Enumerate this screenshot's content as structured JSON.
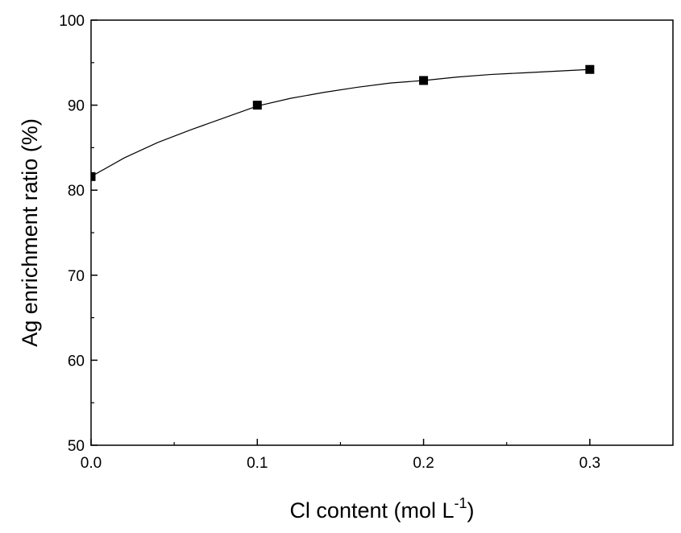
{
  "chart_data": {
    "type": "scatter",
    "title": "",
    "xlabel": "Cl content (mol L",
    "xlabel_sup": "-1",
    "xlabel_end": ")",
    "ylabel": "Ag enrichment ratio (%)",
    "xlim": [
      0.0,
      0.35
    ],
    "ylim": [
      50,
      100
    ],
    "x_ticks": [
      "0.0",
      "0.1",
      "0.2",
      "0.3"
    ],
    "y_ticks": [
      "50",
      "60",
      "70",
      "80",
      "90",
      "100"
    ],
    "grid": false,
    "legend": "none",
    "series": [
      {
        "marker": "square",
        "color": "#000000",
        "x": [
          0.0,
          0.1,
          0.2,
          0.3
        ],
        "y": [
          81.6,
          90.0,
          92.9,
          94.2
        ]
      }
    ],
    "fit_curve": {
      "kind": "exponential",
      "color": "#000000",
      "x": [
        0.0,
        0.02,
        0.04,
        0.06,
        0.08,
        0.1,
        0.12,
        0.14,
        0.16,
        0.18,
        0.2,
        0.22,
        0.24,
        0.26,
        0.28,
        0.3
      ],
      "y": [
        81.6,
        83.8,
        85.6,
        87.1,
        88.5,
        89.9,
        90.8,
        91.5,
        92.1,
        92.6,
        92.9,
        93.3,
        93.6,
        93.8,
        94.0,
        94.2
      ]
    }
  }
}
